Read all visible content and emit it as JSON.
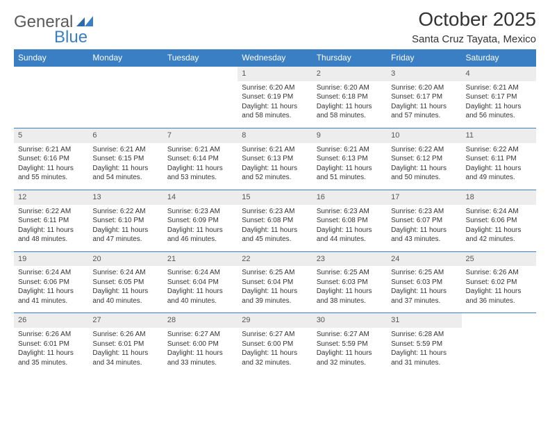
{
  "logo": {
    "text_a": "General",
    "text_b": "Blue"
  },
  "title": "October 2025",
  "location": "Santa Cruz Tayata, Mexico",
  "colors": {
    "header_bg": "#3a7fc4",
    "header_fg": "#ffffff",
    "daynum_bg": "#ededed",
    "border": "#3a7fc4",
    "text": "#333333"
  },
  "typography": {
    "title_fontsize": 28,
    "location_fontsize": 15,
    "weekday_fontsize": 12,
    "daynum_fontsize": 11,
    "cell_fontsize": 10
  },
  "weekdays": [
    "Sunday",
    "Monday",
    "Tuesday",
    "Wednesday",
    "Thursday",
    "Friday",
    "Saturday"
  ],
  "weeks": [
    [
      null,
      null,
      null,
      {
        "n": "1",
        "sr": "Sunrise: 6:20 AM",
        "ss": "Sunset: 6:19 PM",
        "d1": "Daylight: 11 hours",
        "d2": "and 58 minutes."
      },
      {
        "n": "2",
        "sr": "Sunrise: 6:20 AM",
        "ss": "Sunset: 6:18 PM",
        "d1": "Daylight: 11 hours",
        "d2": "and 58 minutes."
      },
      {
        "n": "3",
        "sr": "Sunrise: 6:20 AM",
        "ss": "Sunset: 6:17 PM",
        "d1": "Daylight: 11 hours",
        "d2": "and 57 minutes."
      },
      {
        "n": "4",
        "sr": "Sunrise: 6:21 AM",
        "ss": "Sunset: 6:17 PM",
        "d1": "Daylight: 11 hours",
        "d2": "and 56 minutes."
      }
    ],
    [
      {
        "n": "5",
        "sr": "Sunrise: 6:21 AM",
        "ss": "Sunset: 6:16 PM",
        "d1": "Daylight: 11 hours",
        "d2": "and 55 minutes."
      },
      {
        "n": "6",
        "sr": "Sunrise: 6:21 AM",
        "ss": "Sunset: 6:15 PM",
        "d1": "Daylight: 11 hours",
        "d2": "and 54 minutes."
      },
      {
        "n": "7",
        "sr": "Sunrise: 6:21 AM",
        "ss": "Sunset: 6:14 PM",
        "d1": "Daylight: 11 hours",
        "d2": "and 53 minutes."
      },
      {
        "n": "8",
        "sr": "Sunrise: 6:21 AM",
        "ss": "Sunset: 6:13 PM",
        "d1": "Daylight: 11 hours",
        "d2": "and 52 minutes."
      },
      {
        "n": "9",
        "sr": "Sunrise: 6:21 AM",
        "ss": "Sunset: 6:13 PM",
        "d1": "Daylight: 11 hours",
        "d2": "and 51 minutes."
      },
      {
        "n": "10",
        "sr": "Sunrise: 6:22 AM",
        "ss": "Sunset: 6:12 PM",
        "d1": "Daylight: 11 hours",
        "d2": "and 50 minutes."
      },
      {
        "n": "11",
        "sr": "Sunrise: 6:22 AM",
        "ss": "Sunset: 6:11 PM",
        "d1": "Daylight: 11 hours",
        "d2": "and 49 minutes."
      }
    ],
    [
      {
        "n": "12",
        "sr": "Sunrise: 6:22 AM",
        "ss": "Sunset: 6:11 PM",
        "d1": "Daylight: 11 hours",
        "d2": "and 48 minutes."
      },
      {
        "n": "13",
        "sr": "Sunrise: 6:22 AM",
        "ss": "Sunset: 6:10 PM",
        "d1": "Daylight: 11 hours",
        "d2": "and 47 minutes."
      },
      {
        "n": "14",
        "sr": "Sunrise: 6:23 AM",
        "ss": "Sunset: 6:09 PM",
        "d1": "Daylight: 11 hours",
        "d2": "and 46 minutes."
      },
      {
        "n": "15",
        "sr": "Sunrise: 6:23 AM",
        "ss": "Sunset: 6:08 PM",
        "d1": "Daylight: 11 hours",
        "d2": "and 45 minutes."
      },
      {
        "n": "16",
        "sr": "Sunrise: 6:23 AM",
        "ss": "Sunset: 6:08 PM",
        "d1": "Daylight: 11 hours",
        "d2": "and 44 minutes."
      },
      {
        "n": "17",
        "sr": "Sunrise: 6:23 AM",
        "ss": "Sunset: 6:07 PM",
        "d1": "Daylight: 11 hours",
        "d2": "and 43 minutes."
      },
      {
        "n": "18",
        "sr": "Sunrise: 6:24 AM",
        "ss": "Sunset: 6:06 PM",
        "d1": "Daylight: 11 hours",
        "d2": "and 42 minutes."
      }
    ],
    [
      {
        "n": "19",
        "sr": "Sunrise: 6:24 AM",
        "ss": "Sunset: 6:06 PM",
        "d1": "Daylight: 11 hours",
        "d2": "and 41 minutes."
      },
      {
        "n": "20",
        "sr": "Sunrise: 6:24 AM",
        "ss": "Sunset: 6:05 PM",
        "d1": "Daylight: 11 hours",
        "d2": "and 40 minutes."
      },
      {
        "n": "21",
        "sr": "Sunrise: 6:24 AM",
        "ss": "Sunset: 6:04 PM",
        "d1": "Daylight: 11 hours",
        "d2": "and 40 minutes."
      },
      {
        "n": "22",
        "sr": "Sunrise: 6:25 AM",
        "ss": "Sunset: 6:04 PM",
        "d1": "Daylight: 11 hours",
        "d2": "and 39 minutes."
      },
      {
        "n": "23",
        "sr": "Sunrise: 6:25 AM",
        "ss": "Sunset: 6:03 PM",
        "d1": "Daylight: 11 hours",
        "d2": "and 38 minutes."
      },
      {
        "n": "24",
        "sr": "Sunrise: 6:25 AM",
        "ss": "Sunset: 6:03 PM",
        "d1": "Daylight: 11 hours",
        "d2": "and 37 minutes."
      },
      {
        "n": "25",
        "sr": "Sunrise: 6:26 AM",
        "ss": "Sunset: 6:02 PM",
        "d1": "Daylight: 11 hours",
        "d2": "and 36 minutes."
      }
    ],
    [
      {
        "n": "26",
        "sr": "Sunrise: 6:26 AM",
        "ss": "Sunset: 6:01 PM",
        "d1": "Daylight: 11 hours",
        "d2": "and 35 minutes."
      },
      {
        "n": "27",
        "sr": "Sunrise: 6:26 AM",
        "ss": "Sunset: 6:01 PM",
        "d1": "Daylight: 11 hours",
        "d2": "and 34 minutes."
      },
      {
        "n": "28",
        "sr": "Sunrise: 6:27 AM",
        "ss": "Sunset: 6:00 PM",
        "d1": "Daylight: 11 hours",
        "d2": "and 33 minutes."
      },
      {
        "n": "29",
        "sr": "Sunrise: 6:27 AM",
        "ss": "Sunset: 6:00 PM",
        "d1": "Daylight: 11 hours",
        "d2": "and 32 minutes."
      },
      {
        "n": "30",
        "sr": "Sunrise: 6:27 AM",
        "ss": "Sunset: 5:59 PM",
        "d1": "Daylight: 11 hours",
        "d2": "and 32 minutes."
      },
      {
        "n": "31",
        "sr": "Sunrise: 6:28 AM",
        "ss": "Sunset: 5:59 PM",
        "d1": "Daylight: 11 hours",
        "d2": "and 31 minutes."
      },
      null
    ]
  ]
}
